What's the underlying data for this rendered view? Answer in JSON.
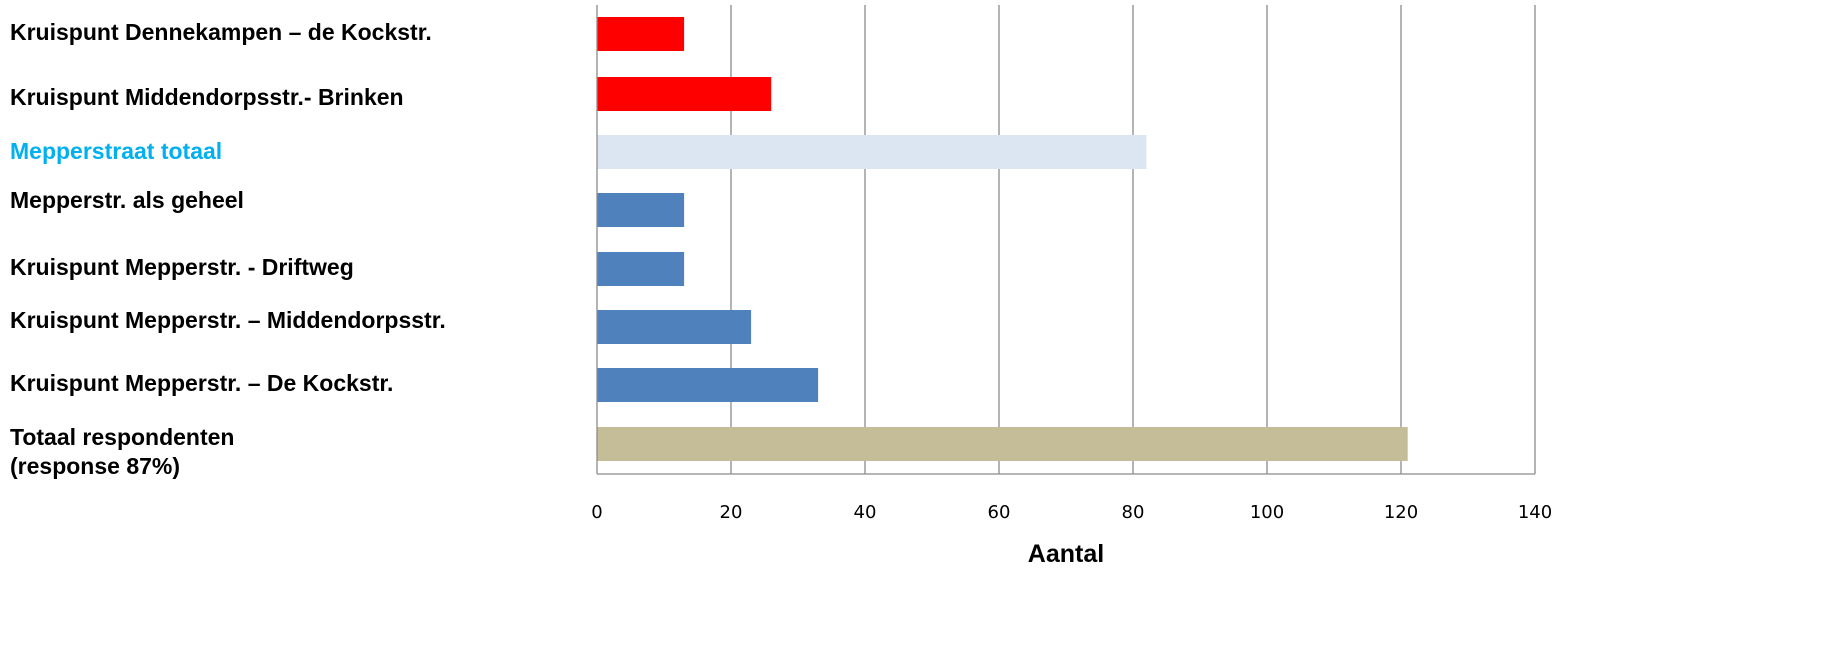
{
  "chart_data": {
    "type": "bar",
    "orientation": "horizontal",
    "categories": [
      "Kruispunt Dennekampen – de Kockstr.",
      "Kruispunt Middendorpsstr.- Brinken",
      "Mepperstraat totaal",
      "Mepperstr. als geheel",
      "Kruispunt Mepperstr. - Driftweg",
      "Kruispunt Mepperstr. – Middendorpsstr.",
      "Kruispunt Mepperstr. – De Kockstr.",
      "Totaal respondenten\n(response 87%)"
    ],
    "values": [
      13,
      26,
      82,
      13,
      13,
      23,
      33,
      121
    ],
    "bar_colors": [
      "#ff0000",
      "#ff0000",
      "#dce6f2",
      "#4f81bd",
      "#4f81bd",
      "#4f81bd",
      "#4f81bd",
      "#c4bd97"
    ],
    "label_colors": [
      "#000000",
      "#000000",
      "#00b0f0",
      "#000000",
      "#000000",
      "#000000",
      "#000000",
      "#000000"
    ],
    "xlim": [
      0,
      140
    ],
    "xticks": [
      0,
      20,
      40,
      60,
      80,
      100,
      120,
      140
    ],
    "xlabel": "Aantal",
    "ylabel": "",
    "title": "",
    "grid": "vertical",
    "legend": "none"
  }
}
